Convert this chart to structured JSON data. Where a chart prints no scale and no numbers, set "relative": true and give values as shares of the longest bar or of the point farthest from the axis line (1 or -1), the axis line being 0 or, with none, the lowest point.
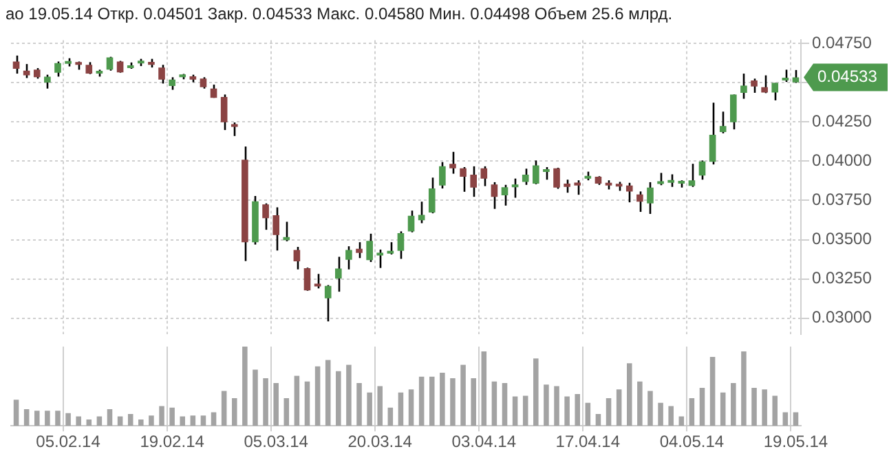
{
  "chart_data": [
    {
      "type": "candlestick",
      "title": "ао 19.05.14 Откр. 0.04501 Закр. 0.04533 Макс. 0.04580 Мин. 0.04498 Объем 25.6 млрд.",
      "categories": [
        null,
        null,
        null,
        null,
        null,
        "05.02.14",
        null,
        null,
        null,
        null,
        null,
        null,
        null,
        null,
        null,
        "19.02.14",
        null,
        null,
        null,
        null,
        null,
        null,
        null,
        null,
        null,
        "05.03.14",
        null,
        null,
        null,
        null,
        null,
        null,
        null,
        null,
        null,
        "20.03.14",
        null,
        null,
        null,
        null,
        null,
        null,
        null,
        null,
        null,
        "03.04.14",
        null,
        null,
        null,
        null,
        null,
        null,
        null,
        null,
        null,
        "17.04.14",
        null,
        null,
        null,
        null,
        null,
        null,
        null,
        null,
        null,
        "04.05.14",
        null,
        null,
        null,
        null,
        null,
        null,
        null,
        null,
        null,
        "19.05.14"
      ],
      "ohlc": [
        [
          0.04634,
          0.04672,
          0.04557,
          0.04588
        ],
        [
          0.04576,
          0.04618,
          0.04529,
          0.04546
        ],
        [
          0.04582,
          0.04592,
          0.04525,
          0.04534
        ],
        [
          0.045,
          0.0455,
          0.04462,
          0.04538
        ],
        [
          0.04563,
          0.04634,
          0.04538,
          0.04624
        ],
        [
          0.0462,
          0.04655,
          0.04603,
          0.04628
        ],
        [
          0.0463,
          0.04634,
          0.04582,
          0.04613
        ],
        [
          0.04613,
          0.0463,
          0.04554,
          0.04557
        ],
        [
          0.04557,
          0.04582,
          0.04538,
          0.04563
        ],
        [
          0.04582,
          0.04664,
          0.04576,
          0.0466
        ],
        [
          0.04634,
          0.04638,
          0.04563,
          0.04565
        ],
        [
          0.04592,
          0.04628,
          0.04588,
          0.04596
        ],
        [
          0.04622,
          0.04651,
          0.04605,
          0.04626
        ],
        [
          0.04632,
          0.04651,
          0.04596,
          0.04613
        ],
        [
          0.04596,
          0.04613,
          0.04494,
          0.04519
        ],
        [
          0.04479,
          0.04534,
          0.04454,
          0.04519
        ],
        [
          0.04534,
          0.04555,
          0.04521,
          0.0454
        ],
        [
          0.0454,
          0.0455,
          0.04502,
          0.04519
        ],
        [
          0.04525,
          0.04534,
          0.04462,
          0.04471
        ],
        [
          0.04462,
          0.04487,
          0.04403,
          0.04403
        ],
        [
          0.04408,
          0.04424,
          0.04198,
          0.04248
        ],
        [
          0.04223,
          0.04246,
          0.0416,
          0.04218
        ],
        [
          0.04009,
          0.04093,
          0.03364,
          0.03484
        ],
        [
          0.03484,
          0.03778,
          0.03469,
          0.03744
        ],
        [
          0.03725,
          0.03731,
          0.03563,
          0.03637
        ],
        [
          0.03656,
          0.03706,
          0.03431,
          0.0353
        ],
        [
          0.03497,
          0.03614,
          0.0349,
          0.03517
        ],
        [
          0.03435,
          0.03454,
          0.03311,
          0.03362
        ],
        [
          0.03318,
          0.03322,
          0.03175,
          0.03177
        ],
        [
          0.03211,
          0.03282,
          0.0319,
          0.03202
        ],
        [
          0.03127,
          0.03211,
          0.0298,
          0.03206
        ],
        [
          0.03253,
          0.03391,
          0.03169,
          0.03316
        ],
        [
          0.03372,
          0.03458,
          0.03311,
          0.03435
        ],
        [
          0.03442,
          0.03484,
          0.03383,
          0.03416
        ],
        [
          0.0337,
          0.03538,
          0.03358,
          0.03492
        ],
        [
          0.034,
          0.03437,
          0.0332,
          0.03412
        ],
        [
          0.03412,
          0.03484,
          0.03406,
          0.03421
        ],
        [
          0.03429,
          0.03553,
          0.03378,
          0.03542
        ],
        [
          0.03553,
          0.03685,
          0.03547,
          0.03652
        ],
        [
          0.03624,
          0.03742,
          0.03605,
          0.03658
        ],
        [
          0.03673,
          0.03895,
          0.03668,
          0.03826
        ],
        [
          0.03845,
          0.03994,
          0.03826,
          0.03967
        ],
        [
          0.03983,
          0.04059,
          0.0392,
          0.03954
        ],
        [
          0.03954,
          0.03962,
          0.03805,
          0.03901
        ],
        [
          0.03914,
          0.03967,
          0.03773,
          0.03832
        ],
        [
          0.03954,
          0.03967,
          0.03841,
          0.03889
        ],
        [
          0.03851,
          0.03866,
          0.03696,
          0.03773
        ],
        [
          0.03782,
          0.03849,
          0.03717,
          0.03834
        ],
        [
          0.03834,
          0.03889,
          0.03767,
          0.03847
        ],
        [
          0.03868,
          0.03952,
          0.03849,
          0.03914
        ],
        [
          0.03857,
          0.04004,
          0.03853,
          0.03973
        ],
        [
          0.03931,
          0.03962,
          0.03882,
          0.03941
        ],
        [
          0.03954,
          0.03958,
          0.03824,
          0.03832
        ],
        [
          0.03857,
          0.03882,
          0.03799,
          0.03836
        ],
        [
          0.03864,
          0.03878,
          0.03786,
          0.03845
        ],
        [
          0.03889,
          0.03933,
          0.03878,
          0.03897
        ],
        [
          0.03901,
          0.03904,
          0.03849,
          0.03857
        ],
        [
          0.03857,
          0.03878,
          0.0382,
          0.03845
        ],
        [
          0.03847,
          0.03868,
          0.03811,
          0.03838
        ],
        [
          0.03845,
          0.03862,
          0.03738,
          0.03807
        ],
        [
          0.03788,
          0.03807,
          0.03677,
          0.03742
        ],
        [
          0.03731,
          0.03866,
          0.03664,
          0.03832
        ],
        [
          0.03855,
          0.03925,
          0.03847,
          0.03864
        ],
        [
          0.03862,
          0.03916,
          0.03836,
          0.03872
        ],
        [
          0.03857,
          0.03878,
          0.03832,
          0.03866
        ],
        [
          0.03843,
          0.03983,
          0.03836,
          0.03878
        ],
        [
          0.03908,
          0.04004,
          0.03882,
          0.03998
        ],
        [
          0.03996,
          0.04372,
          0.03979,
          0.04168
        ],
        [
          0.04185,
          0.04315,
          0.04177,
          0.04223
        ],
        [
          0.04248,
          0.04424,
          0.04202,
          0.04424
        ],
        [
          0.04435,
          0.04557,
          0.04397,
          0.04481
        ],
        [
          0.04513,
          0.04525,
          0.04435,
          0.04475
        ],
        [
          0.04471,
          0.04546,
          0.04433,
          0.04437
        ],
        [
          0.04437,
          0.04498,
          0.04387,
          0.04498
        ],
        [
          0.04513,
          0.04582,
          0.04504,
          0.04529
        ],
        [
          0.04501,
          0.0458,
          0.04498,
          0.04533
        ]
      ],
      "colors": [
        "#8b4343",
        "#8b4343",
        "#8b4343",
        "#4e9a4e",
        "#4e9a4e",
        "#4e9a4e",
        "#8b4343",
        "#8b4343",
        "#4e9a4e",
        "#4e9a4e",
        "#8b4343",
        "#4e9a4e",
        "#4e9a4e",
        "#8b4343",
        "#8b4343",
        "#4e9a4e",
        "#4e9a4e",
        "#8b4343",
        "#8b4343",
        "#8b4343",
        "#8b4343",
        "#8b4343",
        "#8b4343",
        "#4e9a4e",
        "#8b4343",
        "#8b4343",
        "#4e9a4e",
        "#8b4343",
        "#8b4343",
        "#8b4343",
        "#4e9a4e",
        "#4e9a4e",
        "#4e9a4e",
        "#8b4343",
        "#4e9a4e",
        "#4e9a4e",
        "#4e9a4e",
        "#4e9a4e",
        "#4e9a4e",
        "#4e9a4e",
        "#4e9a4e",
        "#4e9a4e",
        "#8b4343",
        "#8b4343",
        "#8b4343",
        "#8b4343",
        "#8b4343",
        "#4e9a4e",
        "#4e9a4e",
        "#4e9a4e",
        "#4e9a4e",
        "#4e9a4e",
        "#8b4343",
        "#8b4343",
        "#8b4343",
        "#4e9a4e",
        "#8b4343",
        "#8b4343",
        "#8b4343",
        "#8b4343",
        "#8b4343",
        "#4e9a4e",
        "#4e9a4e",
        "#4e9a4e",
        "#4e9a4e",
        "#4e9a4e",
        "#4e9a4e",
        "#4e9a4e",
        "#4e9a4e",
        "#4e9a4e",
        "#4e9a4e",
        "#8b4343",
        "#8b4343",
        "#4e9a4e",
        "#4e9a4e",
        "#4e9a4e"
      ],
      "ylim": [
        0.029,
        0.0477
      ],
      "yticks": [
        {
          "value": 0.03,
          "label": "0.03000"
        },
        {
          "value": 0.0325,
          "label": "0.03250"
        },
        {
          "value": 0.035,
          "label": "0.03500"
        },
        {
          "value": 0.0375,
          "label": "0.03750"
        },
        {
          "value": 0.04,
          "label": "0.04000"
        },
        {
          "value": 0.0425,
          "label": "0.04250"
        },
        {
          "value": 0.045,
          "label": null
        },
        {
          "value": 0.0475,
          "label": "0.04750"
        }
      ],
      "annotations": [
        {
          "text": "0.04533",
          "x": "19.05.14",
          "y": 0.04533
        }
      ],
      "grid": true,
      "tick_labels": "y"
    },
    {
      "type": "bar",
      "relative": true,
      "color": "#a3a3a3",
      "grid": "x",
      "categories": [
        null,
        null,
        null,
        null,
        null,
        "05.02.14",
        null,
        null,
        null,
        null,
        null,
        null,
        null,
        null,
        null,
        "19.02.14",
        null,
        null,
        null,
        null,
        null,
        null,
        null,
        null,
        null,
        "05.03.14",
        null,
        null,
        null,
        null,
        null,
        null,
        null,
        null,
        null,
        "20.03.14",
        null,
        null,
        null,
        null,
        null,
        null,
        null,
        null,
        null,
        "03.04.14",
        null,
        null,
        null,
        null,
        null,
        null,
        null,
        null,
        null,
        "17.04.14",
        null,
        null,
        null,
        null,
        null,
        null,
        null,
        null,
        null,
        "04.05.14",
        null,
        null,
        null,
        null,
        null,
        null,
        null,
        null,
        null,
        "19.05.14"
      ],
      "values": [
        0.33,
        0.21,
        0.19,
        0.19,
        0.19,
        0.16,
        0.12,
        0.08,
        0.12,
        0.21,
        0.12,
        0.15,
        0.08,
        0.13,
        0.25,
        0.23,
        0.12,
        0.13,
        0.13,
        0.17,
        0.44,
        0.35,
        1,
        0.71,
        0.6,
        0.54,
        0.35,
        0.63,
        0.56,
        0.75,
        0.83,
        0.69,
        0.77,
        0.54,
        0.42,
        0.5,
        0.23,
        0.42,
        0.46,
        0.62,
        0.62,
        0.67,
        0.6,
        0.77,
        0.6,
        0.94,
        0.56,
        0.54,
        0.37,
        0.38,
        0.85,
        0.52,
        0.5,
        0.37,
        0.4,
        0.29,
        0.15,
        0.35,
        0.46,
        0.79,
        0.56,
        0.44,
        0.29,
        0.25,
        0.12,
        0.35,
        0.48,
        0.87,
        0.42,
        0.54,
        0.94,
        0.48,
        0.46,
        0.38,
        0.17,
        0.17
      ],
      "tick_labels": "x"
    }
  ]
}
